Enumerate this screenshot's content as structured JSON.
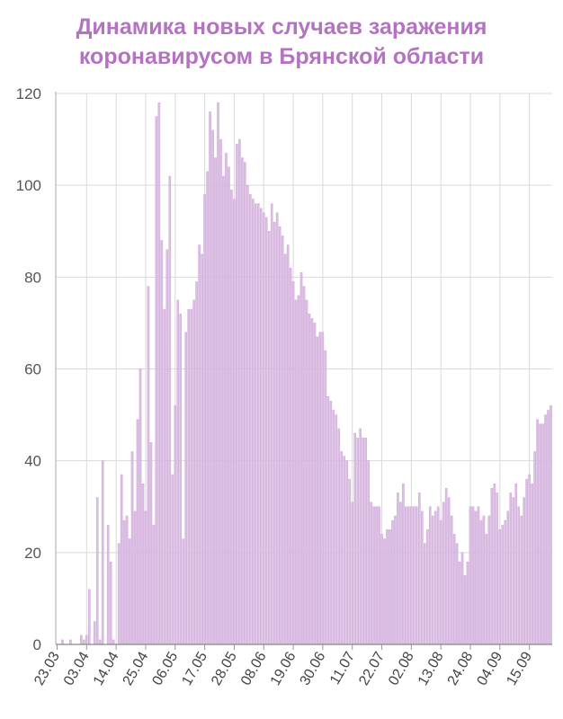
{
  "title_line1": "Динамика новых случаев заражения",
  "title_line2": "коронавирусом в Брянской области",
  "colors": {
    "bar": "#dcbde4",
    "bar_edge": "#c9a2d3",
    "title": "#b373c0",
    "grid": "#d9d9d9"
  },
  "chart_data": {
    "type": "bar",
    "title": "Динамика новых случаев заражения коронавирусом в Брянской области",
    "xlabel": "",
    "ylabel": "",
    "ylim": [
      0,
      120
    ],
    "yticks": [
      0,
      20,
      40,
      60,
      80,
      100,
      120
    ],
    "grid": true,
    "x_tick_labels": [
      "23.03",
      "03.04",
      "14.04",
      "25.04",
      "06.05",
      "17.05",
      "28.05",
      "08.06",
      "19.06",
      "30.06",
      "11.07",
      "22.07",
      "02.08",
      "13.08",
      "24.08",
      "04.09",
      "15.09"
    ],
    "start_date": "23.03",
    "values": [
      0,
      0,
      1,
      0,
      0,
      1,
      0,
      0,
      0,
      2,
      1,
      2,
      12,
      0,
      5,
      32,
      1,
      40,
      0,
      26,
      18,
      1,
      0,
      22,
      37,
      27,
      28,
      23,
      42,
      29,
      49,
      60,
      35,
      29,
      78,
      44,
      26,
      115,
      118,
      88,
      73,
      86,
      102,
      37,
      52,
      75,
      72,
      23,
      68,
      73,
      73,
      75,
      79,
      87,
      85,
      98,
      103,
      116,
      112,
      106,
      118,
      110,
      102,
      107,
      104,
      99,
      97,
      109,
      110,
      106,
      105,
      100,
      98,
      97,
      96,
      96,
      95,
      94,
      93,
      90,
      96,
      92,
      94,
      91,
      89,
      85,
      87,
      82,
      79,
      75,
      76,
      81,
      78,
      75,
      72,
      71,
      70,
      67,
      68,
      68,
      64,
      54,
      53,
      51,
      50,
      47,
      42,
      41,
      40,
      36,
      31,
      46,
      45,
      47,
      45,
      45,
      40,
      31,
      30,
      30,
      30,
      24,
      23,
      25,
      25,
      27,
      28,
      33,
      31,
      35,
      30,
      30,
      30,
      30,
      30,
      33,
      29,
      22,
      25,
      30,
      28,
      29,
      30,
      27,
      31,
      34,
      32,
      28,
      24,
      22,
      18,
      20,
      15,
      18,
      30,
      30,
      29,
      30,
      27,
      28,
      24,
      28,
      34,
      35,
      33,
      25,
      26,
      27,
      29,
      33,
      32,
      35,
      30,
      28,
      32,
      36,
      37,
      35,
      42,
      49,
      48,
      48,
      50,
      51,
      52
    ]
  }
}
